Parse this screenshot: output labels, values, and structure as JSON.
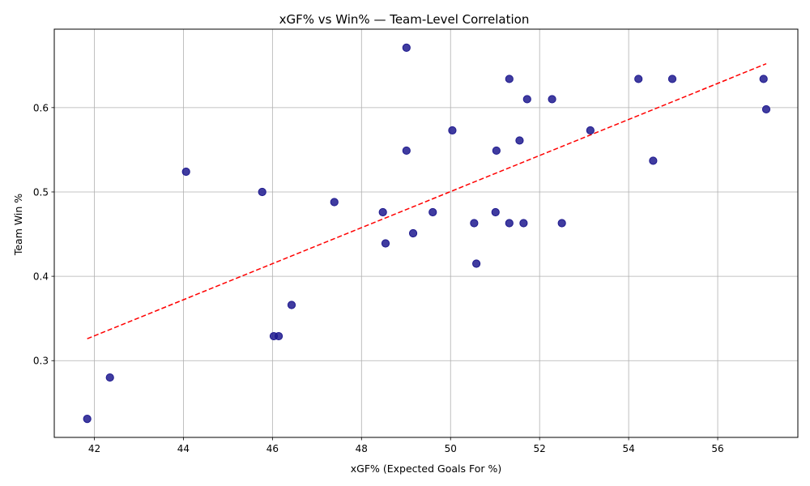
{
  "chart_data": {
    "type": "scatter",
    "title": "xGF% vs Win% — Team-Level Correlation",
    "xlabel": "xGF% (Expected Goals For %)",
    "ylabel": "Team Win %",
    "xlim": [
      41.1,
      57.8
    ],
    "ylim": [
      0.209,
      0.693
    ],
    "xticks": [
      42,
      44,
      46,
      48,
      50,
      52,
      54,
      56
    ],
    "yticks": [
      0.3,
      0.4,
      0.5,
      0.6
    ],
    "xtick_labels": [
      "42",
      "44",
      "46",
      "48",
      "50",
      "52",
      "54",
      "56"
    ],
    "ytick_labels": [
      "0.3",
      "0.4",
      "0.5",
      "0.6"
    ],
    "grid": true,
    "point_color": "#1f1a8f",
    "trend_color": "#ff0000",
    "points": [
      {
        "x": 41.84,
        "y": 0.231
      },
      {
        "x": 42.35,
        "y": 0.28
      },
      {
        "x": 44.06,
        "y": 0.524
      },
      {
        "x": 45.77,
        "y": 0.5
      },
      {
        "x": 46.03,
        "y": 0.329
      },
      {
        "x": 46.14,
        "y": 0.329
      },
      {
        "x": 46.43,
        "y": 0.366
      },
      {
        "x": 47.39,
        "y": 0.488
      },
      {
        "x": 48.48,
        "y": 0.476
      },
      {
        "x": 48.54,
        "y": 0.439
      },
      {
        "x": 49.01,
        "y": 0.671
      },
      {
        "x": 49.01,
        "y": 0.549
      },
      {
        "x": 49.16,
        "y": 0.451
      },
      {
        "x": 49.6,
        "y": 0.476
      },
      {
        "x": 50.04,
        "y": 0.573
      },
      {
        "x": 50.53,
        "y": 0.463
      },
      {
        "x": 50.58,
        "y": 0.415
      },
      {
        "x": 51.01,
        "y": 0.476
      },
      {
        "x": 51.03,
        "y": 0.549
      },
      {
        "x": 51.32,
        "y": 0.634
      },
      {
        "x": 51.32,
        "y": 0.463
      },
      {
        "x": 51.55,
        "y": 0.561
      },
      {
        "x": 51.64,
        "y": 0.463
      },
      {
        "x": 51.72,
        "y": 0.61
      },
      {
        "x": 52.28,
        "y": 0.61
      },
      {
        "x": 52.5,
        "y": 0.463
      },
      {
        "x": 53.14,
        "y": 0.573
      },
      {
        "x": 54.22,
        "y": 0.634
      },
      {
        "x": 54.55,
        "y": 0.537
      },
      {
        "x": 54.98,
        "y": 0.634
      },
      {
        "x": 57.03,
        "y": 0.634
      },
      {
        "x": 57.09,
        "y": 0.598
      }
    ],
    "trendline": {
      "x": [
        41.84,
        57.09
      ],
      "y": [
        0.326,
        0.652
      ]
    }
  }
}
